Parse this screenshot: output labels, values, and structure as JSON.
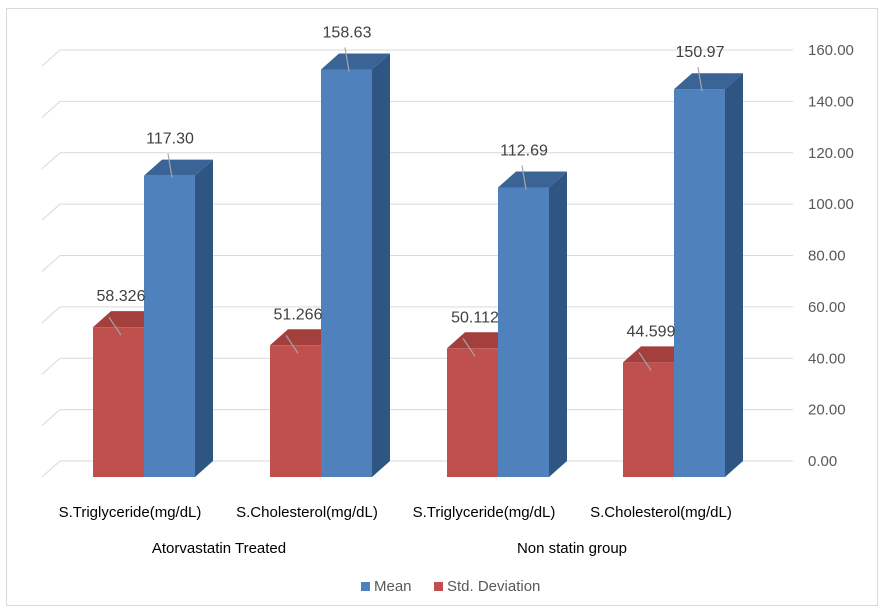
{
  "chart_data": {
    "type": "bar",
    "style": "3d-clustered-column",
    "groups": [
      {
        "label": "Atorvastatin  Treated",
        "categories": [
          "S.Triglyceride(mg/dL)",
          "S.Cholesterol(mg/dL)"
        ]
      },
      {
        "label": "Non statin group",
        "categories": [
          "S.Triglyceride(mg/dL)",
          "S.Cholesterol(mg/dL)"
        ]
      }
    ],
    "categories": [
      "S.Triglyceride(mg/dL)",
      "S.Cholesterol(mg/dL)",
      "S.Triglyceride(mg/dL)",
      "S.Cholesterol(mg/dL)"
    ],
    "series": [
      {
        "name": "Mean",
        "values": [
          117.3,
          158.63,
          112.69,
          150.97
        ],
        "labels": [
          "117.30",
          "158.63",
          "112.69",
          "150.97"
        ],
        "color": "#4f81bd",
        "side_color": "#2f5583",
        "top_color": "#3a6496"
      },
      {
        "name": "Std. Deviation",
        "values": [
          58.326,
          51.266,
          50.112,
          44.599
        ],
        "labels": [
          "58.326",
          "51.266",
          "50.112",
          "44.599"
        ],
        "color": "#c0504d",
        "side_color": "#8b2e2b",
        "top_color": "#a33f3c"
      }
    ],
    "y_axis": {
      "position": "right",
      "ylim": [
        0,
        160
      ],
      "ticks": [
        "0.00",
        "20.00",
        "40.00",
        "60.00",
        "80.00",
        "100.00",
        "120.00",
        "140.00",
        "160.00"
      ]
    },
    "grid": true,
    "legend": "bottom"
  }
}
